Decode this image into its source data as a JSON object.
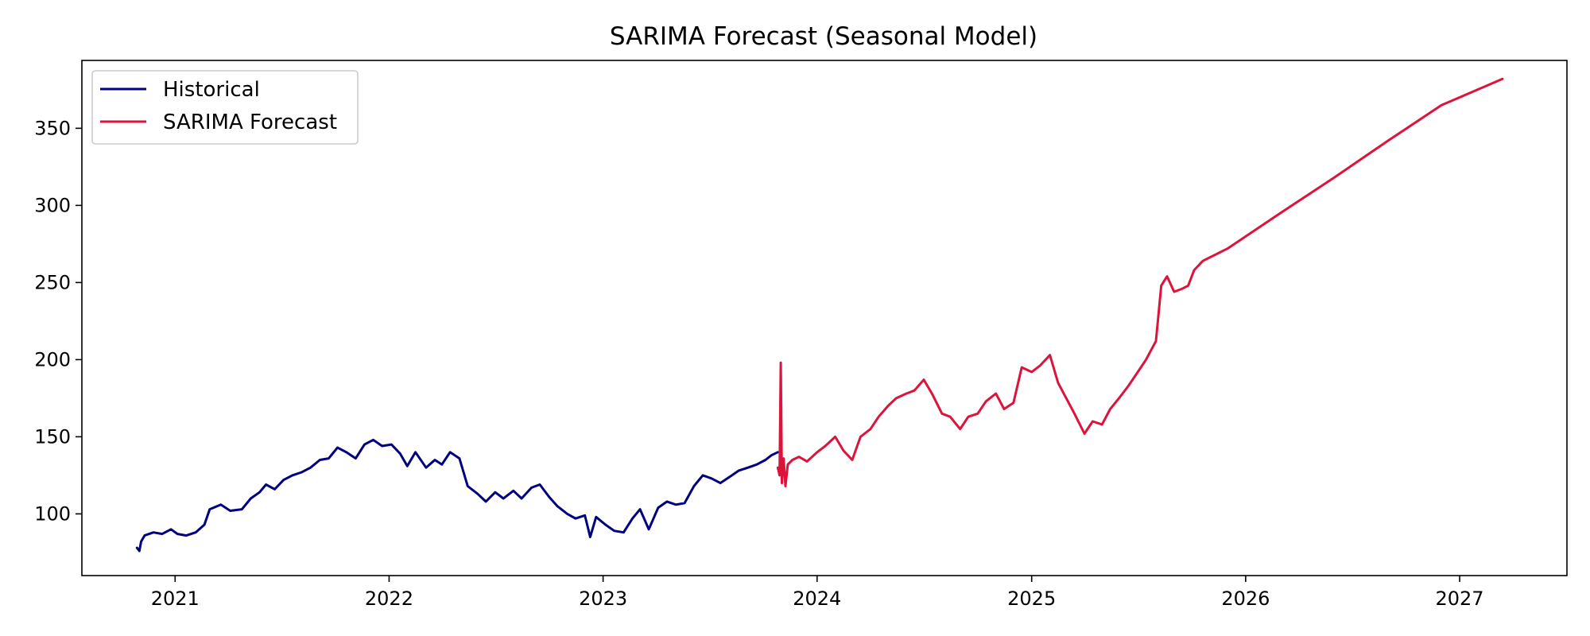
{
  "chart_data": {
    "type": "line",
    "title": "SARIMA Forecast (Seasonal Model)",
    "xlabel": "",
    "ylabel": "",
    "xlim": [
      "2020-07-26",
      "2027-07-03"
    ],
    "ylim": [
      60,
      394
    ],
    "x_ticks": [
      "2021",
      "2022",
      "2023",
      "2024",
      "2025",
      "2026",
      "2027"
    ],
    "x_tick_dates": [
      "2021-01-01",
      "2022-01-01",
      "2023-01-01",
      "2024-01-01",
      "2025-01-01",
      "2026-01-01",
      "2027-01-01"
    ],
    "y_ticks": [
      100,
      150,
      200,
      250,
      300,
      350
    ],
    "grid": false,
    "legend": {
      "position": "upper-left",
      "entries": [
        "Historical",
        "SARIMA Forecast"
      ]
    },
    "series": [
      {
        "name": "Historical",
        "color": "#000080",
        "points": [
          [
            "2020-10-28",
            78
          ],
          [
            "2020-11-01",
            76
          ],
          [
            "2020-11-04",
            82
          ],
          [
            "2020-11-10",
            86
          ],
          [
            "2020-11-25",
            88
          ],
          [
            "2020-12-10",
            87
          ],
          [
            "2020-12-25",
            90
          ],
          [
            "2021-01-05",
            87
          ],
          [
            "2021-01-20",
            86
          ],
          [
            "2021-02-05",
            88
          ],
          [
            "2021-02-20",
            93
          ],
          [
            "2021-03-01",
            103
          ],
          [
            "2021-03-20",
            106
          ],
          [
            "2021-04-05",
            102
          ],
          [
            "2021-04-25",
            103
          ],
          [
            "2021-05-10",
            110
          ],
          [
            "2021-05-25",
            114
          ],
          [
            "2021-06-05",
            119
          ],
          [
            "2021-06-20",
            116
          ],
          [
            "2021-07-05",
            122
          ],
          [
            "2021-07-20",
            125
          ],
          [
            "2021-08-05",
            127
          ],
          [
            "2021-08-20",
            130
          ],
          [
            "2021-09-05",
            135
          ],
          [
            "2021-09-20",
            136
          ],
          [
            "2021-10-05",
            143
          ],
          [
            "2021-10-20",
            140
          ],
          [
            "2021-11-05",
            136
          ],
          [
            "2021-11-20",
            145
          ],
          [
            "2021-12-05",
            148
          ],
          [
            "2021-12-20",
            144
          ],
          [
            "2022-01-05",
            145
          ],
          [
            "2022-01-20",
            139
          ],
          [
            "2022-02-01",
            131
          ],
          [
            "2022-02-15",
            140
          ],
          [
            "2022-03-05",
            130
          ],
          [
            "2022-03-20",
            135
          ],
          [
            "2022-04-01",
            132
          ],
          [
            "2022-04-15",
            140
          ],
          [
            "2022-05-01",
            136
          ],
          [
            "2022-05-15",
            118
          ],
          [
            "2022-06-01",
            113
          ],
          [
            "2022-06-15",
            108
          ],
          [
            "2022-07-01",
            114
          ],
          [
            "2022-07-15",
            110
          ],
          [
            "2022-08-01",
            115
          ],
          [
            "2022-08-15",
            110
          ],
          [
            "2022-09-01",
            117
          ],
          [
            "2022-09-15",
            119
          ],
          [
            "2022-10-01",
            111
          ],
          [
            "2022-10-15",
            105
          ],
          [
            "2022-11-01",
            100
          ],
          [
            "2022-11-15",
            97
          ],
          [
            "2022-12-01",
            99
          ],
          [
            "2022-12-10",
            85
          ],
          [
            "2022-12-20",
            98
          ],
          [
            "2023-01-05",
            93
          ],
          [
            "2023-01-20",
            89
          ],
          [
            "2023-02-05",
            88
          ],
          [
            "2023-02-20",
            97
          ],
          [
            "2023-03-05",
            103
          ],
          [
            "2023-03-20",
            90
          ],
          [
            "2023-04-05",
            104
          ],
          [
            "2023-04-20",
            108
          ],
          [
            "2023-05-05",
            106
          ],
          [
            "2023-05-20",
            107
          ],
          [
            "2023-06-05",
            118
          ],
          [
            "2023-06-20",
            125
          ],
          [
            "2023-07-05",
            123
          ],
          [
            "2023-07-20",
            120
          ],
          [
            "2023-08-05",
            124
          ],
          [
            "2023-08-20",
            128
          ],
          [
            "2023-09-05",
            130
          ],
          [
            "2023-09-20",
            132
          ],
          [
            "2023-10-05",
            135
          ],
          [
            "2023-10-15",
            138
          ],
          [
            "2023-10-26",
            140
          ]
        ]
      },
      {
        "name": "SARIMA Forecast",
        "color": "#DC143C",
        "points": [
          [
            "2023-10-26",
            130
          ],
          [
            "2023-10-29",
            125
          ],
          [
            "2023-10-31",
            198
          ],
          [
            "2023-11-02",
            120
          ],
          [
            "2023-11-05",
            136
          ],
          [
            "2023-11-08",
            118
          ],
          [
            "2023-11-12",
            132
          ],
          [
            "2023-11-20",
            135
          ],
          [
            "2023-12-01",
            137
          ],
          [
            "2023-12-15",
            134
          ],
          [
            "2024-01-01",
            140
          ],
          [
            "2024-01-15",
            144
          ],
          [
            "2024-02-01",
            150
          ],
          [
            "2024-02-15",
            141
          ],
          [
            "2024-03-01",
            135
          ],
          [
            "2024-03-15",
            150
          ],
          [
            "2024-04-01",
            155
          ],
          [
            "2024-04-15",
            163
          ],
          [
            "2024-05-01",
            170
          ],
          [
            "2024-05-15",
            175
          ],
          [
            "2024-06-01",
            178
          ],
          [
            "2024-06-15",
            180
          ],
          [
            "2024-07-01",
            187
          ],
          [
            "2024-07-15",
            178
          ],
          [
            "2024-08-01",
            165
          ],
          [
            "2024-08-15",
            163
          ],
          [
            "2024-09-01",
            155
          ],
          [
            "2024-09-15",
            163
          ],
          [
            "2024-10-01",
            165
          ],
          [
            "2024-10-15",
            173
          ],
          [
            "2024-11-01",
            178
          ],
          [
            "2024-11-15",
            168
          ],
          [
            "2024-12-01",
            172
          ],
          [
            "2024-12-15",
            195
          ],
          [
            "2025-01-01",
            192
          ],
          [
            "2025-01-15",
            196
          ],
          [
            "2025-02-01",
            203
          ],
          [
            "2025-02-15",
            185
          ],
          [
            "2025-03-01",
            175
          ],
          [
            "2025-03-15",
            165
          ],
          [
            "2025-04-01",
            152
          ],
          [
            "2025-04-15",
            160
          ],
          [
            "2025-05-01",
            158
          ],
          [
            "2025-05-15",
            168
          ],
          [
            "2025-06-01",
            176
          ],
          [
            "2025-06-15",
            183
          ],
          [
            "2025-07-01",
            192
          ],
          [
            "2025-07-15",
            200
          ],
          [
            "2025-08-01",
            212
          ],
          [
            "2025-08-10",
            248
          ],
          [
            "2025-08-20",
            254
          ],
          [
            "2025-09-01",
            244
          ],
          [
            "2025-09-15",
            246
          ],
          [
            "2025-09-25",
            248
          ],
          [
            "2025-10-05",
            258
          ],
          [
            "2025-10-20",
            264
          ],
          [
            "2025-12-01",
            272
          ],
          [
            "2026-03-01",
            295
          ],
          [
            "2026-06-01",
            318
          ],
          [
            "2026-09-01",
            342
          ],
          [
            "2026-12-01",
            365
          ],
          [
            "2027-03-15",
            382
          ]
        ]
      }
    ]
  }
}
